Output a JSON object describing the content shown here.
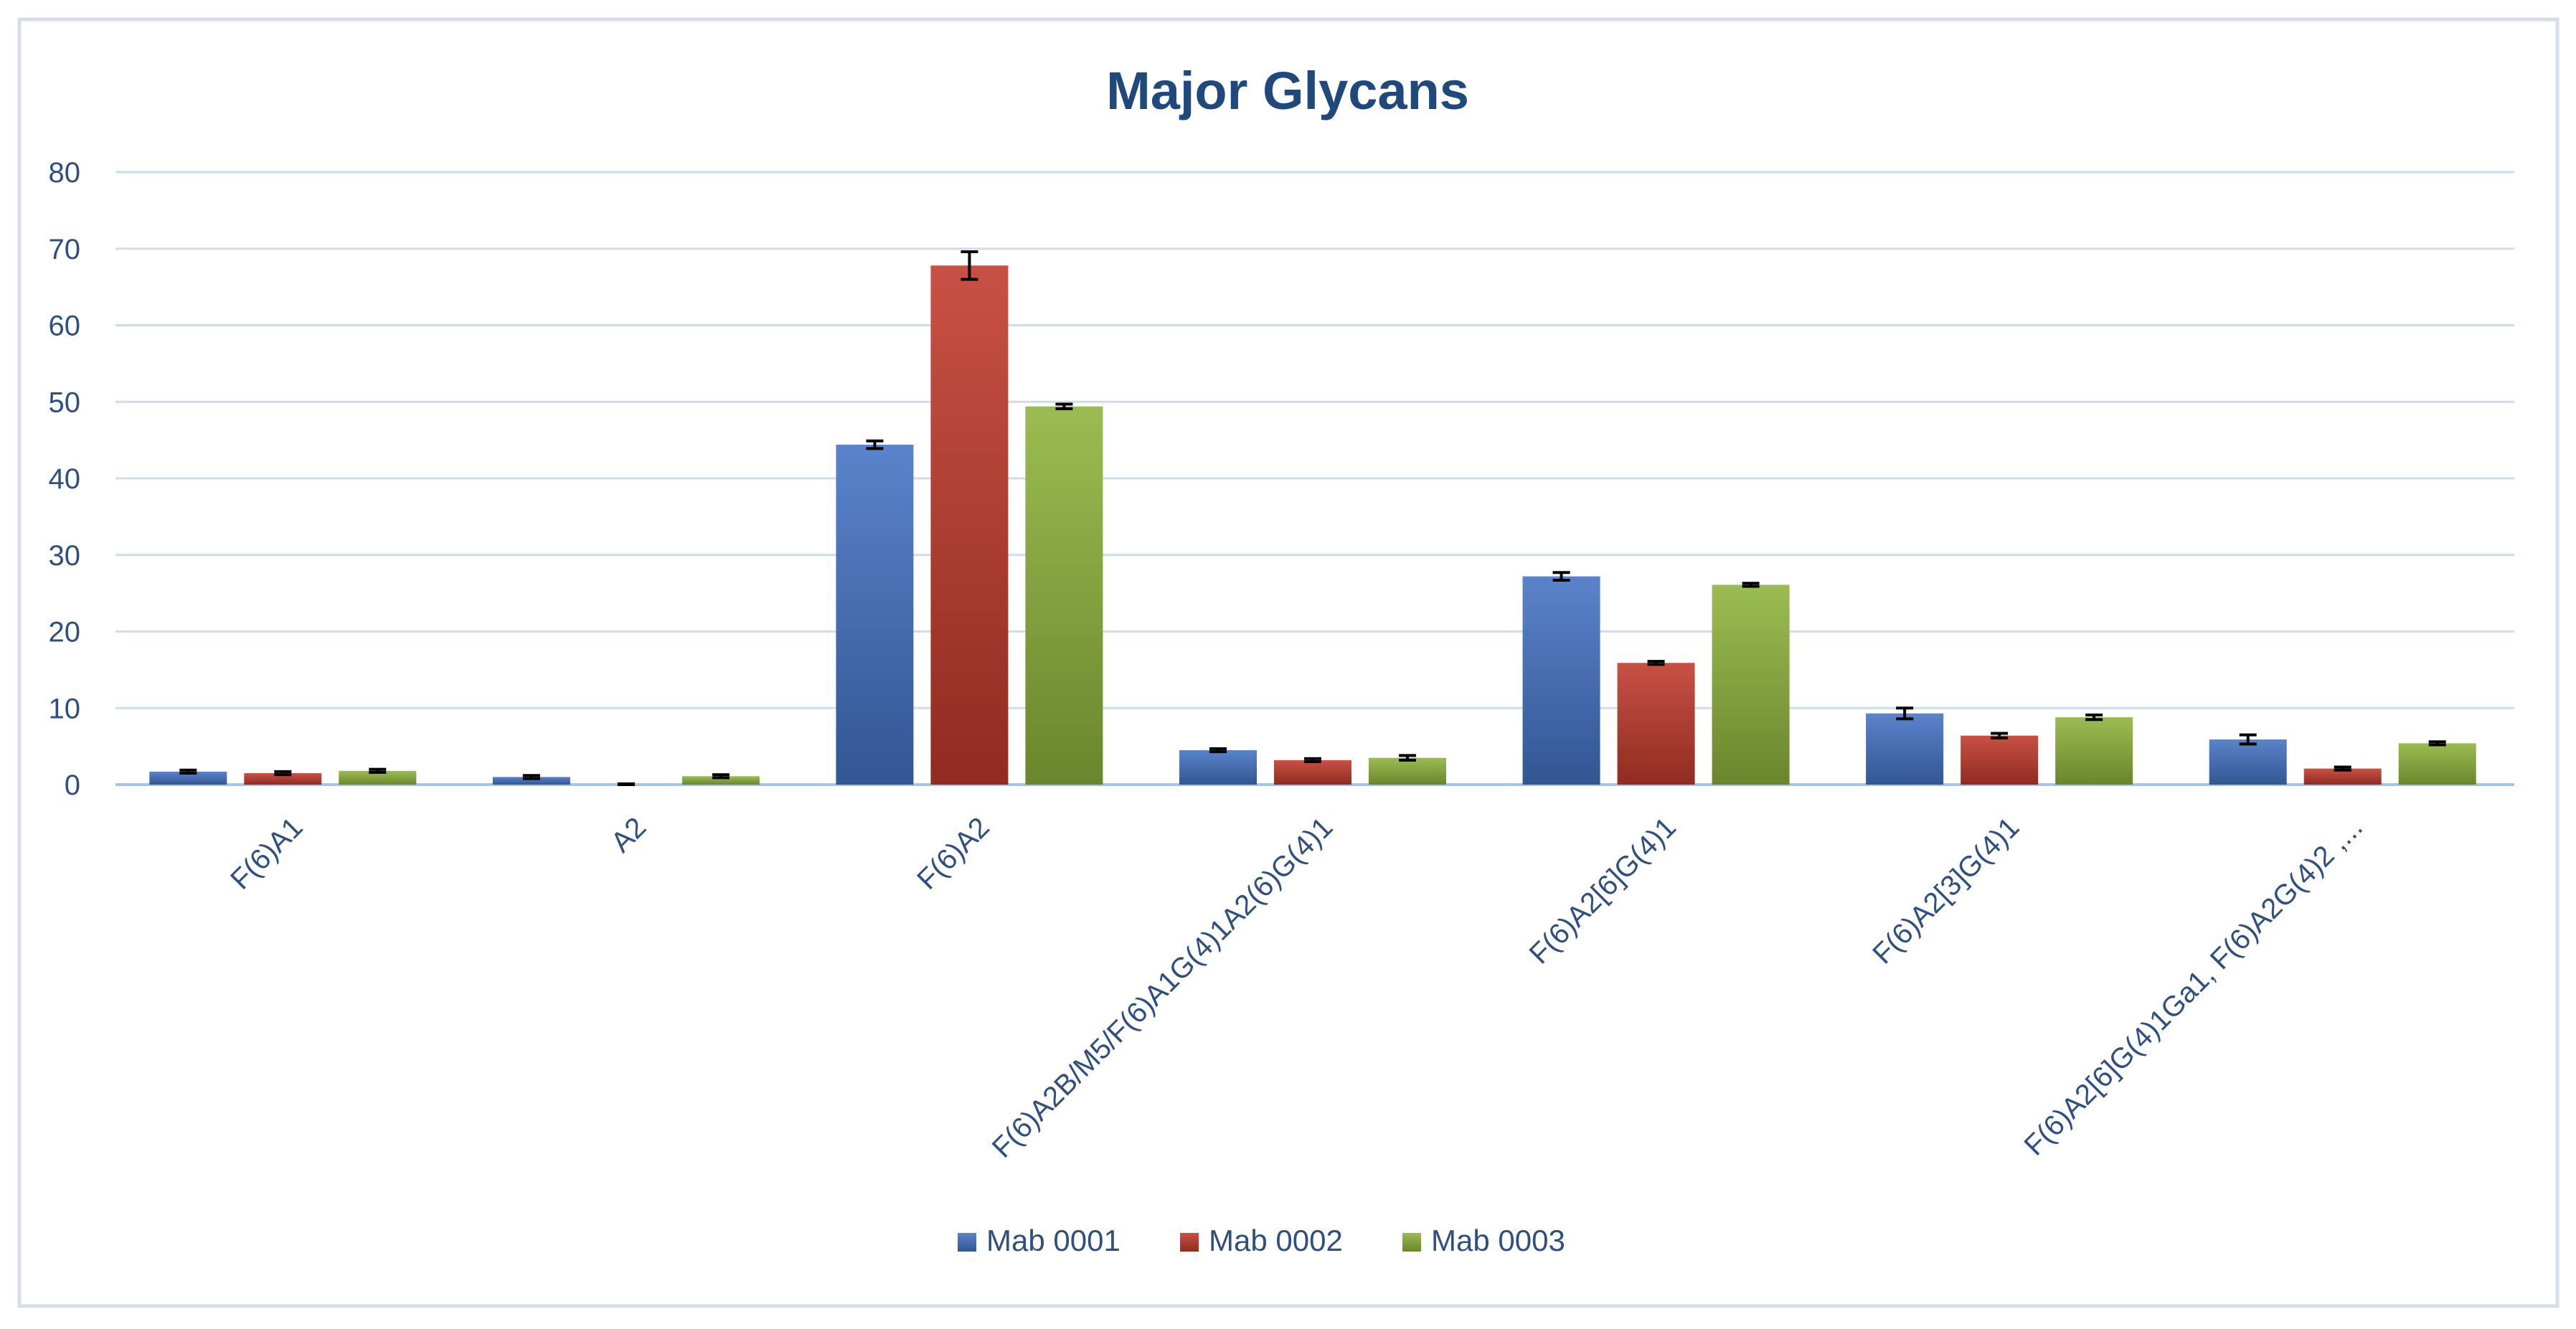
{
  "chart_data": {
    "type": "bar",
    "title": "Major Glycans",
    "xlabel": "",
    "ylabel": "",
    "ylim": [
      0,
      80
    ],
    "yticks": [
      0,
      10,
      20,
      30,
      40,
      50,
      60,
      70,
      80
    ],
    "grid": true,
    "legend_position": "bottom",
    "categories": [
      "F(6)A1",
      "A2",
      "F(6)A2",
      "F(6)A2B/M5/F(6)A1G(4)1A2(6)G(4)1",
      "F(6)A2[6]G(4)1",
      "F(6)A2[3]G(4)1",
      "F(6)A2[6]G(4)1Ga1, F(6)A2G(4)2 ,..."
    ],
    "series": [
      {
        "name": "Mab 0001",
        "color": "#4472C4",
        "values": [
          1.7,
          1.0,
          44.4,
          4.5,
          27.2,
          9.3,
          5.9
        ],
        "errors": [
          0.2,
          0.2,
          0.5,
          0.2,
          0.5,
          0.7,
          0.6
        ]
      },
      {
        "name": "Mab 0002",
        "color": "#C0392B",
        "values": [
          1.5,
          0.0,
          67.8,
          3.2,
          15.9,
          6.4,
          2.1
        ],
        "errors": [
          0.2,
          0.1,
          1.8,
          0.2,
          0.2,
          0.3,
          0.2
        ]
      },
      {
        "name": "Mab 0003",
        "color": "#8DB33A",
        "values": [
          1.8,
          1.1,
          49.4,
          3.5,
          26.1,
          8.8,
          5.4
        ],
        "errors": [
          0.2,
          0.2,
          0.3,
          0.3,
          0.2,
          0.3,
          0.2
        ]
      }
    ]
  }
}
